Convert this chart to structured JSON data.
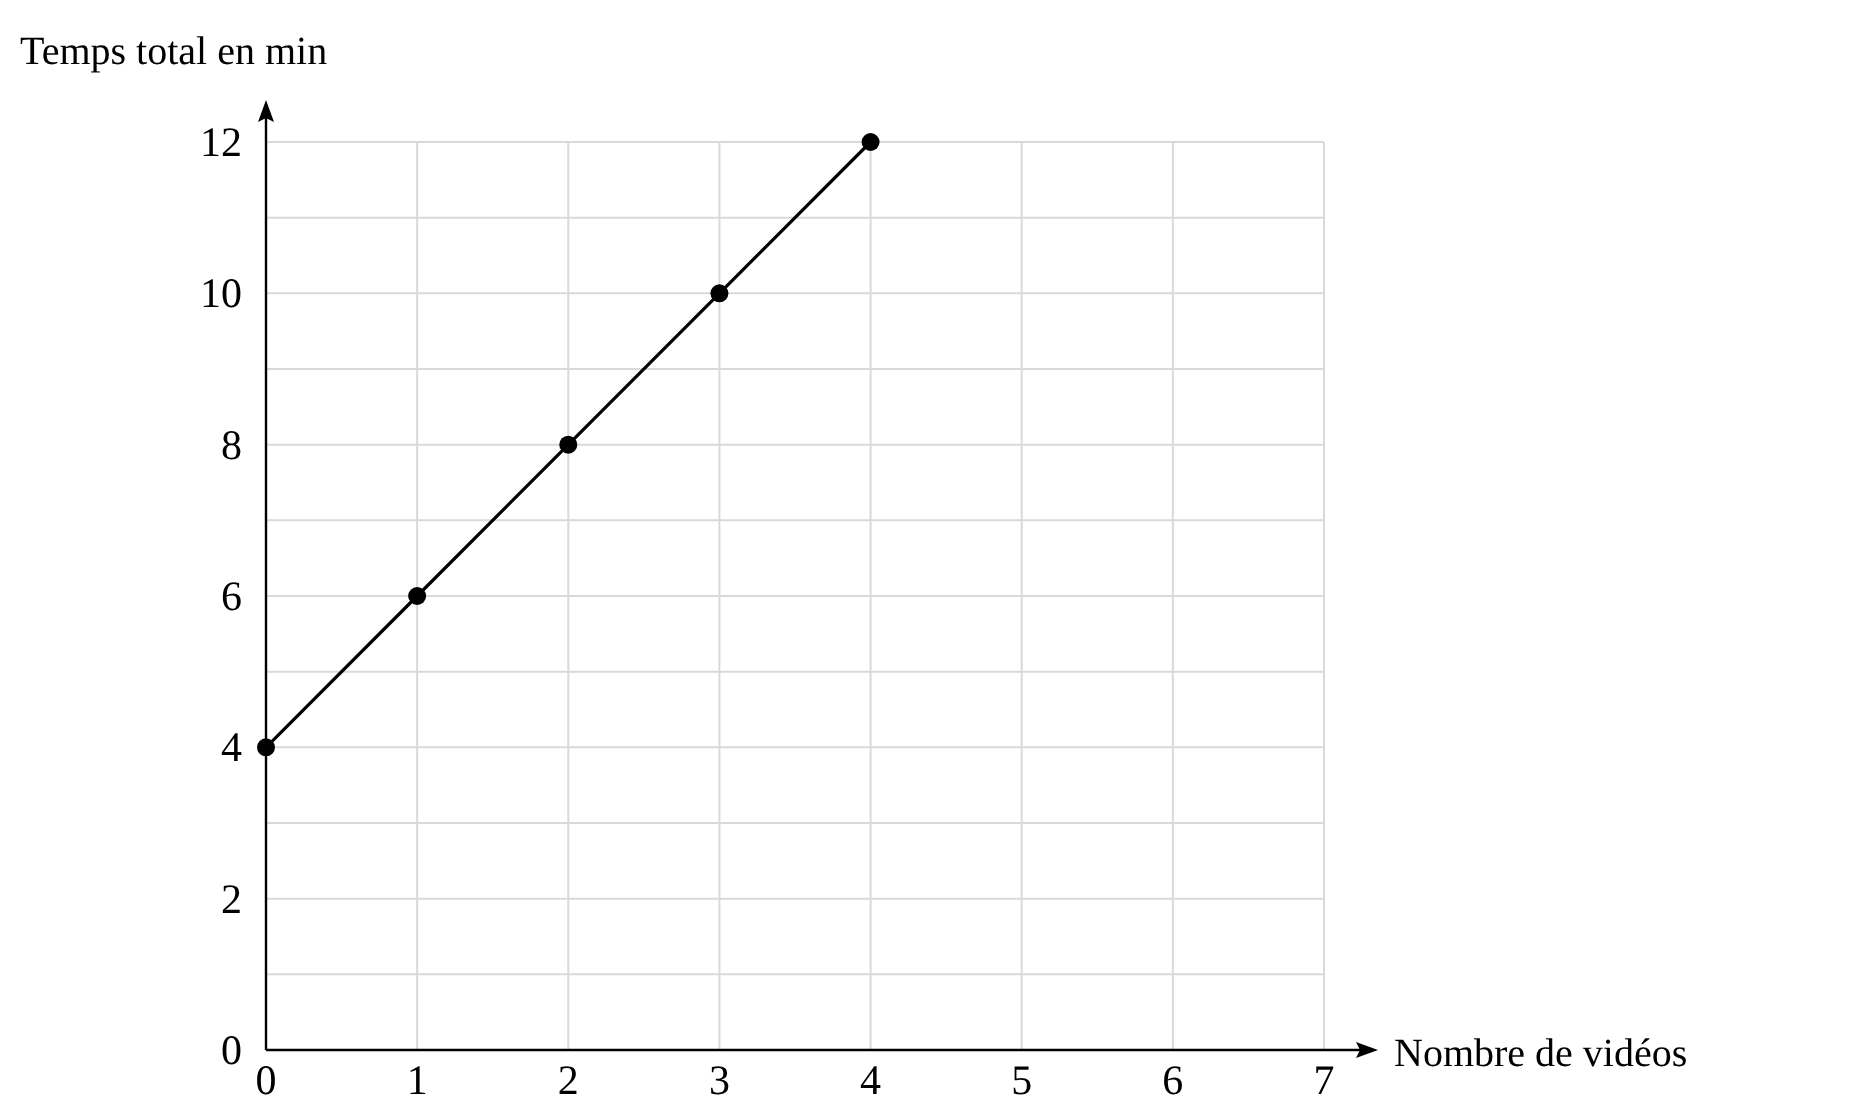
{
  "chart_data": {
    "type": "line",
    "xlabel": "Nombre de vidéos",
    "ylabel": "Temps total en min",
    "x": [
      0,
      1,
      2,
      3,
      4
    ],
    "series": [
      {
        "color": "#000000",
        "values": [
          4,
          6,
          8,
          10,
          12
        ]
      }
    ],
    "xlim": [
      0,
      7
    ],
    "xticks": [
      0,
      1,
      2,
      3,
      4,
      5,
      6,
      7
    ],
    "ylim": [
      0,
      12
    ],
    "yticks": [
      0,
      {
        "value": 1,
        "label": null
      },
      2,
      {
        "value": 3,
        "label": null
      },
      4,
      {
        "value": 5,
        "label": null
      },
      6,
      {
        "value": 7,
        "label": null
      },
      8,
      {
        "value": 9,
        "label": null
      },
      10,
      {
        "value": 11,
        "label": null
      },
      12
    ],
    "grid": true,
    "marker": "circle",
    "line_style": "solid"
  }
}
